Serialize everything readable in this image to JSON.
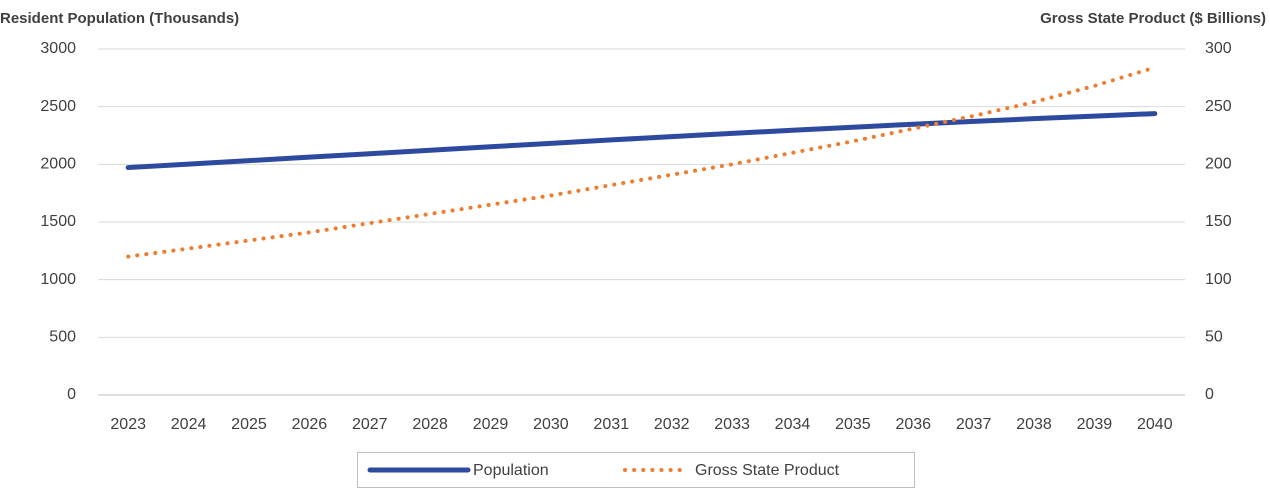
{
  "chart_data": {
    "type": "line",
    "y_label": "Resident Population (Thousands)",
    "y2_label": "Gross State Product ($ Billions)",
    "categories": [
      "2023",
      "2024",
      "2025",
      "2026",
      "2027",
      "2028",
      "2029",
      "2030",
      "2031",
      "2032",
      "2033",
      "2034",
      "2035",
      "2036",
      "2037",
      "2038",
      "2039",
      "2040"
    ],
    "series": [
      {
        "name": "Population",
        "color": "#2e4a9e",
        "style": "solid",
        "values": [
          1972,
          2002,
          2032,
          2062,
          2092,
          2122,
          2152,
          2182,
          2212,
          2240,
          2268,
          2296,
          2322,
          2348,
          2372,
          2396,
          2418,
          2440
        ]
      },
      {
        "name": "Gross State Product",
        "color": "#ed7d31",
        "style": "dotted",
        "axis": "y2",
        "values": [
          120,
          127,
          134,
          141,
          149,
          157,
          165,
          173,
          182,
          191,
          200,
          210,
          220,
          231,
          242,
          254,
          268,
          284
        ]
      }
    ],
    "ylim": [
      0,
      3000
    ],
    "yticks": [
      0,
      500,
      1000,
      1500,
      2000,
      2500,
      3000
    ],
    "y2lim": [
      0,
      300
    ],
    "y2ticks": [
      0,
      50,
      100,
      150,
      200,
      250,
      300
    ],
    "grid": true,
    "legend": "bottom"
  }
}
